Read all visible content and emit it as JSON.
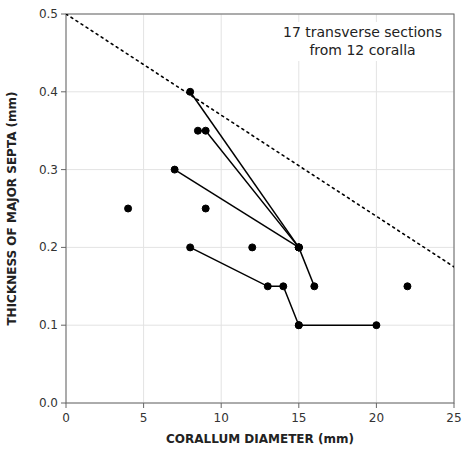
{
  "chart_data": {
    "type": "line",
    "title": "17 transverse sections\nfrom 12 coralla",
    "x_label": "CORALLUM DIAMETER (mm)",
    "y_label": "THICKNESS OF MAJOR SEPTA (mm)",
    "xlim": [
      0,
      25
    ],
    "ylim": [
      0.0,
      0.5
    ],
    "xticks": [
      0,
      5,
      10,
      15,
      20,
      25
    ],
    "yticks": [
      {
        "value": 0.0,
        "label": "0.0"
      },
      0.1,
      0.2,
      0.3,
      0.4,
      0.5
    ],
    "grid": true,
    "series": [
      {
        "type": "line",
        "line_style": "dotted",
        "color": "black",
        "x": [
          0,
          25
        ],
        "values": [
          0.5,
          0.175
        ]
      },
      {
        "type": "line",
        "marker": "circle",
        "color": "black",
        "x": [
          8,
          15
        ],
        "values": [
          0.4,
          0.2
        ]
      },
      {
        "type": "line",
        "marker": "circle",
        "color": "black",
        "x": [
          8.5,
          9,
          15
        ],
        "values": [
          0.35,
          0.35,
          0.2
        ]
      },
      {
        "type": "line",
        "marker": "circle",
        "color": "black",
        "x": [
          7,
          15
        ],
        "values": [
          0.3,
          0.2
        ]
      },
      {
        "type": "line",
        "marker": "circle",
        "color": "black",
        "x": [
          8,
          13,
          14,
          15
        ],
        "values": [
          0.2,
          0.15,
          0.15,
          0.1
        ]
      },
      {
        "type": "line",
        "marker": "circle",
        "color": "black",
        "x": [
          15,
          16
        ],
        "values": [
          0.2,
          0.15
        ]
      },
      {
        "type": "line",
        "marker": "circle",
        "color": "black",
        "x": [
          15,
          20
        ],
        "values": [
          0.1,
          0.1
        ]
      },
      {
        "type": "scatter",
        "marker": "circle",
        "color": "black",
        "x": [
          4,
          9,
          12,
          22
        ],
        "values": [
          0.25,
          0.25,
          0.2,
          0.15
        ]
      }
    ]
  }
}
